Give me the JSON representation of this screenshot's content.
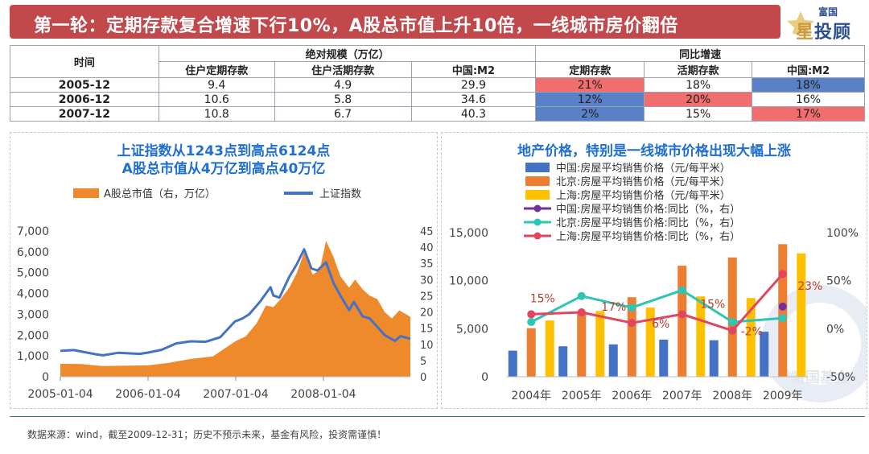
{
  "header": {
    "title": "第一轮：定期存款复合增速下行10%，A股总市值上升10倍，一线城市房价翻倍",
    "logo_small": "富国",
    "logo_big_1": "星",
    "logo_big_2": "投顾"
  },
  "table": {
    "time_header": "时间",
    "group1": "绝对规模（万亿）",
    "group2": "同比增速",
    "columns": [
      "住户定期存款",
      "住户活期存款",
      "中国:M2",
      "定期存款",
      "活期存款",
      "中国:M2"
    ],
    "rows": [
      {
        "label": "2005-12",
        "cells": [
          "9.4",
          "4.9",
          "29.9",
          "21%",
          "18%",
          "18%"
        ],
        "shade": [
          "",
          "",
          "",
          "red",
          "",
          "blue"
        ]
      },
      {
        "label": "2006-12",
        "cells": [
          "10.6",
          "5.8",
          "34.6",
          "12%",
          "20%",
          "16%"
        ],
        "shade": [
          "",
          "",
          "",
          "blue",
          "red",
          ""
        ]
      },
      {
        "label": "2007-12",
        "cells": [
          "10.8",
          "6.7",
          "40.3",
          "2%",
          "15%",
          "17%"
        ],
        "shade": [
          "",
          "",
          "",
          "blue",
          "",
          "red"
        ]
      }
    ],
    "colors": {
      "red": "#f26d6d",
      "blue": "#5a80c8"
    }
  },
  "left_panel": {
    "title_line1": "上证指数从1243点到高点6124点",
    "title_line2": "A股总市值从4万亿到高点40万亿"
  },
  "right_panel": {
    "title": "地产价格，特别是一线城市价格出现大幅上涨",
    "watermark": "富国基金"
  },
  "chart_data": [
    {
      "type": "line",
      "title": "上证指数从1243点到高点6124点 A股总市值从4万亿到高点40万亿",
      "x_tick_labels": [
        "2005-01-04",
        "2006-01-04",
        "2007-01-04",
        "2008-01-04"
      ],
      "xlim": [
        "2005-01-04",
        "2008-12-31"
      ],
      "left_axis": {
        "ylim": [
          0,
          7000
        ],
        "ticks": [
          "0",
          "1,000",
          "2,000",
          "3,000",
          "4,000",
          "5,000",
          "6,000",
          "7,000"
        ]
      },
      "right_axis": {
        "ylim": [
          0,
          45
        ],
        "ticks": [
          "0",
          "5",
          "10",
          "15",
          "20",
          "25",
          "30",
          "35",
          "40",
          "45"
        ]
      },
      "legend": "top",
      "series": [
        {
          "name": "A股总市值（右，万亿）",
          "kind": "area",
          "axis": "right",
          "color": "#ef8a2c",
          "points": [
            [
              "2005-01-04",
              4.0
            ],
            [
              "2005-04-01",
              3.9
            ],
            [
              "2005-07-01",
              3.3
            ],
            [
              "2005-10-01",
              3.4
            ],
            [
              "2006-01-04",
              3.5
            ],
            [
              "2006-04-01",
              4.3
            ],
            [
              "2006-07-01",
              5.5
            ],
            [
              "2006-10-01",
              6.3
            ],
            [
              "2007-01-04",
              11.0
            ],
            [
              "2007-02-15",
              12.5
            ],
            [
              "2007-04-01",
              16.5
            ],
            [
              "2007-05-10",
              22.0
            ],
            [
              "2007-06-10",
              21.5
            ],
            [
              "2007-07-10",
              24.0
            ],
            [
              "2007-08-15",
              27.5
            ],
            [
              "2007-09-15",
              32.0
            ],
            [
              "2007-10-16",
              38.5
            ],
            [
              "2007-11-20",
              31.5
            ],
            [
              "2007-12-20",
              33.0
            ],
            [
              "2008-01-15",
              42.0
            ],
            [
              "2008-02-15",
              37.0
            ],
            [
              "2008-03-15",
              31.0
            ],
            [
              "2008-04-20",
              27.5
            ],
            [
              "2008-05-15",
              30.0
            ],
            [
              "2008-06-15",
              27.0
            ],
            [
              "2008-07-15",
              25.0
            ],
            [
              "2008-08-15",
              24.0
            ],
            [
              "2008-09-15",
              20.0
            ],
            [
              "2008-10-15",
              18.0
            ],
            [
              "2008-11-15",
              20.5
            ],
            [
              "2008-12-31",
              18.5
            ]
          ]
        },
        {
          "name": "上证指数",
          "kind": "line",
          "axis": "left",
          "color": "#4472c4",
          "points": [
            [
              "2005-01-04",
              1243
            ],
            [
              "2005-03-01",
              1280
            ],
            [
              "2005-06-01",
              1080
            ],
            [
              "2005-07-01",
              1030
            ],
            [
              "2005-09-01",
              1150
            ],
            [
              "2005-12-01",
              1100
            ],
            [
              "2006-01-04",
              1160
            ],
            [
              "2006-03-01",
              1290
            ],
            [
              "2006-05-01",
              1600
            ],
            [
              "2006-07-01",
              1700
            ],
            [
              "2006-09-01",
              1680
            ],
            [
              "2006-11-01",
              1900
            ],
            [
              "2006-12-31",
              2650
            ],
            [
              "2007-02-01",
              2800
            ],
            [
              "2007-03-01",
              3000
            ],
            [
              "2007-04-15",
              3600
            ],
            [
              "2007-05-29",
              4300
            ],
            [
              "2007-06-10",
              3900
            ],
            [
              "2007-07-05",
              3800
            ],
            [
              "2007-08-15",
              4800
            ],
            [
              "2007-09-15",
              5400
            ],
            [
              "2007-10-16",
              6124
            ],
            [
              "2007-11-15",
              5200
            ],
            [
              "2007-12-10",
              5100
            ],
            [
              "2008-01-15",
              5500
            ],
            [
              "2008-02-15",
              4500
            ],
            [
              "2008-03-15",
              3900
            ],
            [
              "2008-04-20",
              3200
            ],
            [
              "2008-05-10",
              3600
            ],
            [
              "2008-06-15",
              2900
            ],
            [
              "2008-07-15",
              2800
            ],
            [
              "2008-08-15",
              2400
            ],
            [
              "2008-09-15",
              2000
            ],
            [
              "2008-10-28",
              1720
            ],
            [
              "2008-11-20",
              1950
            ],
            [
              "2008-12-31",
              1820
            ]
          ]
        }
      ]
    },
    {
      "type": "bar",
      "title": "地产价格，特别是一线城市价格出现大幅上涨",
      "categories": [
        "2004年",
        "2005年",
        "2006年",
        "2007年",
        "2008年",
        "2009年"
      ],
      "left_axis": {
        "ylim": [
          0,
          15000
        ],
        "ticks": [
          "0",
          "5,000",
          "10,000",
          "15,000"
        ]
      },
      "right_axis": {
        "ylim": [
          -50,
          100
        ],
        "ticks": [
          "-50%",
          "0%",
          "50%",
          "100%"
        ]
      },
      "legend": "top-left",
      "series": [
        {
          "name": "中国:房屋平均销售价格（元/每平米）",
          "kind": "bar",
          "axis": "left",
          "color": "#4472c4",
          "values": [
            2714,
            3168,
            3367,
            3864,
            3800,
            4681
          ]
        },
        {
          "name": "北京:房屋平均销售价格（元/每平米）",
          "kind": "bar",
          "axis": "left",
          "color": "#ed7d31",
          "values": [
            5053,
            6788,
            8279,
            11553,
            12418,
            13799
          ]
        },
        {
          "name": "上海:房屋平均销售价格（元/每平米）",
          "kind": "bar",
          "axis": "left",
          "color": "#ffc000",
          "values": [
            5855,
            6842,
            7196,
            8361,
            8195,
            12840
          ]
        },
        {
          "name": "中国:房屋平均销售价格:同比（%，右）",
          "kind": "line",
          "axis": "right",
          "color": "#7030a0",
          "values": [
            null,
            null,
            null,
            null,
            null,
            23
          ]
        },
        {
          "name": "北京:房屋平均销售价格:同比（%，右）",
          "kind": "line",
          "axis": "right",
          "color": "#2ec4b6",
          "values": [
            7,
            34,
            22,
            40,
            7,
            11
          ]
        },
        {
          "name": "上海:房屋平均销售价格:同比（%，右）",
          "kind": "line",
          "axis": "right",
          "color": "#e04660",
          "values": [
            15,
            17,
            6,
            15,
            -2,
            57
          ]
        }
      ],
      "annotations": [
        {
          "text": "15%",
          "category": "2004年",
          "value": 15
        },
        {
          "text": "17%",
          "category": "2005年",
          "value": 17
        },
        {
          "text": "6%",
          "category": "2006年",
          "value": 6
        },
        {
          "text": "15%",
          "category": "2007年",
          "value": 15
        },
        {
          "text": "-2%",
          "category": "2008年",
          "value": -2
        },
        {
          "text": "23%",
          "category": "2009年",
          "value": 23
        }
      ]
    }
  ],
  "footer": {
    "text": "数据来源：wind，截至2009-12-31；历史不预示未来，基金有风险，投资需谨慎！"
  }
}
